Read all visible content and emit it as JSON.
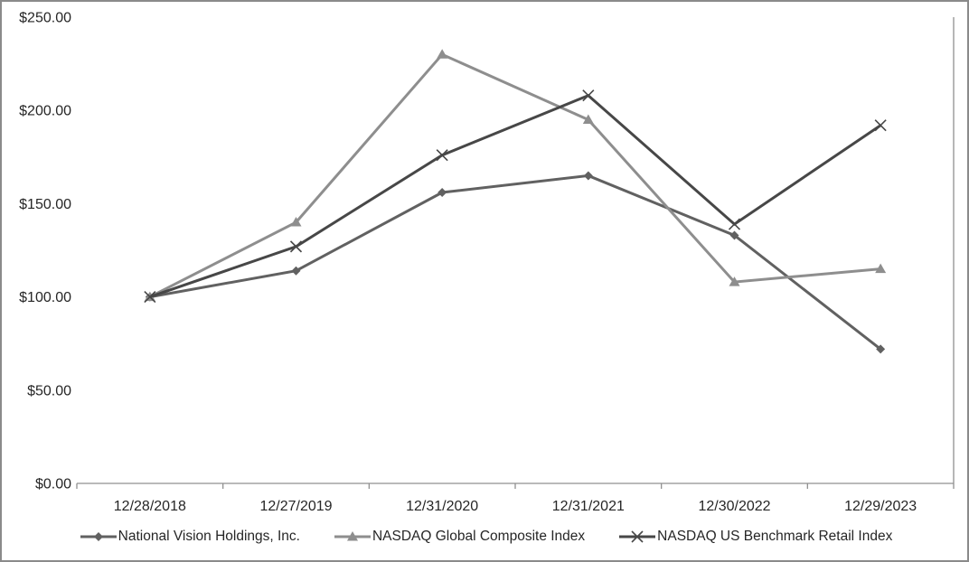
{
  "chart_data": {
    "type": "line",
    "title": "",
    "xlabel": "",
    "ylabel": "",
    "categories": [
      "12/28/2018",
      "12/27/2019",
      "12/31/2020",
      "12/31/2021",
      "12/30/2022",
      "12/29/2023"
    ],
    "y_tick_labels": [
      "$250.00",
      "$200.00",
      "$150.00",
      "$100.00",
      "$50.00",
      "$0.00"
    ],
    "y_tick_values": [
      250,
      200,
      150,
      100,
      50,
      0
    ],
    "ylim": [
      0,
      250
    ],
    "grid": false,
    "legend_position": "bottom",
    "series": [
      {
        "name": "National Vision Holdings, Inc.",
        "marker": "diamond",
        "color": "#616161",
        "values": [
          100,
          114,
          156,
          165,
          133,
          72
        ]
      },
      {
        "name": "NASDAQ Global Composite Index",
        "marker": "triangle",
        "color": "#8e8e8e",
        "values": [
          100,
          140,
          230,
          195,
          108,
          115
        ]
      },
      {
        "name": "NASDAQ US Benchmark Retail Index",
        "marker": "x",
        "color": "#474747",
        "values": [
          100,
          127,
          176,
          208,
          139,
          192
        ]
      }
    ],
    "colors": {
      "axis": "#909090",
      "text": "#262626",
      "border": "#8a8a8a",
      "background": "#ffffff"
    }
  }
}
